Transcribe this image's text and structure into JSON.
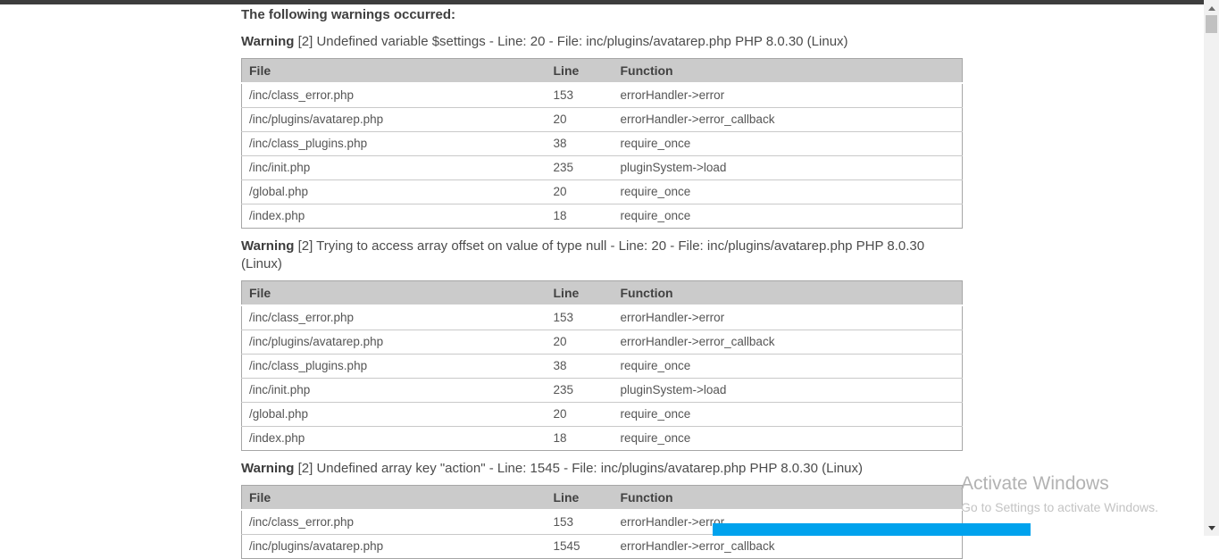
{
  "colors": {
    "accent_blue": "#00a2ed",
    "table_header_bg": "#cbcbcb",
    "top_bar": "#3d3d3d"
  },
  "intro": "The following warnings occurred:",
  "table_headers": {
    "file": "File",
    "line": "Line",
    "function": "Function"
  },
  "warnings": [
    {
      "label": "Warning",
      "text": "[2] Undefined variable $settings - Line: 20 - File: inc/plugins/avatarep.php PHP 8.0.30 (Linux)",
      "rows": [
        {
          "file": "/inc/class_error.php",
          "line": "153",
          "fn": "errorHandler->error"
        },
        {
          "file": "/inc/plugins/avatarep.php",
          "line": "20",
          "fn": "errorHandler->error_callback"
        },
        {
          "file": "/inc/class_plugins.php",
          "line": "38",
          "fn": "require_once"
        },
        {
          "file": "/inc/init.php",
          "line": "235",
          "fn": "pluginSystem->load"
        },
        {
          "file": "/global.php",
          "line": "20",
          "fn": "require_once"
        },
        {
          "file": "/index.php",
          "line": "18",
          "fn": "require_once"
        }
      ]
    },
    {
      "label": "Warning",
      "text": "[2] Trying to access array offset on value of type null - Line: 20 - File: inc/plugins/avatarep.php PHP 8.0.30 (Linux)",
      "rows": [
        {
          "file": "/inc/class_error.php",
          "line": "153",
          "fn": "errorHandler->error"
        },
        {
          "file": "/inc/plugins/avatarep.php",
          "line": "20",
          "fn": "errorHandler->error_callback"
        },
        {
          "file": "/inc/class_plugins.php",
          "line": "38",
          "fn": "require_once"
        },
        {
          "file": "/inc/init.php",
          "line": "235",
          "fn": "pluginSystem->load"
        },
        {
          "file": "/global.php",
          "line": "20",
          "fn": "require_once"
        },
        {
          "file": "/index.php",
          "line": "18",
          "fn": "require_once"
        }
      ]
    },
    {
      "label": "Warning",
      "text": "[2] Undefined array key \"action\" - Line: 1545 - File: inc/plugins/avatarep.php PHP 8.0.30 (Linux)",
      "rows": [
        {
          "file": "/inc/class_error.php",
          "line": "153",
          "fn": "errorHandler->error"
        },
        {
          "file": "/inc/plugins/avatarep.php",
          "line": "1545",
          "fn": "errorHandler->error_callback"
        }
      ]
    }
  ],
  "watermark": {
    "line1": "Activate Windows",
    "line2": "Go to Settings to activate Windows."
  }
}
